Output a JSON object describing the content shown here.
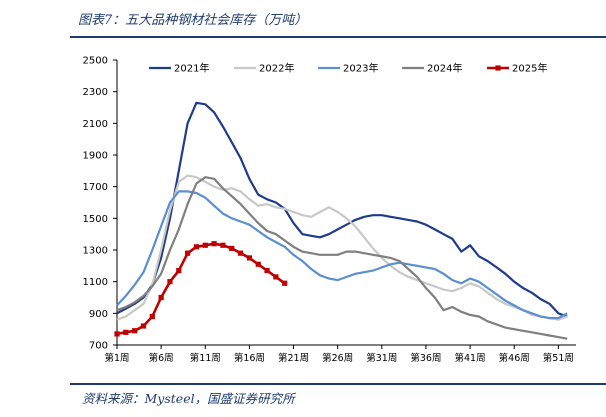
{
  "figure_title": "图表7：五大品种钢材社会库存（万吨）",
  "source_note": "资料来源：Mysteel，国盛证券研究所",
  "chart_data": {
    "type": "line",
    "title": "五大品种钢材社会库存（万吨）",
    "xlabel": "",
    "ylabel": "",
    "ylim": [
      700,
      2500
    ],
    "yticks": [
      700,
      900,
      1100,
      1300,
      1500,
      1700,
      1900,
      2100,
      2300,
      2500
    ],
    "xlim": [
      1,
      53
    ],
    "xtick_labels": [
      "第1周",
      "第6周",
      "第11周",
      "第16周",
      "第21周",
      "第26周",
      "第31周",
      "第36周",
      "第41周",
      "第46周",
      "第51周"
    ],
    "xtick_weeks": [
      1,
      6,
      11,
      16,
      21,
      26,
      31,
      36,
      41,
      46,
      51
    ],
    "legend_position": "top",
    "series": [
      {
        "name": "2021年",
        "color": "#1f3b8c",
        "width": 2.2,
        "points": [
          [
            1,
            900
          ],
          [
            2,
            930
          ],
          [
            3,
            960
          ],
          [
            4,
            1000
          ],
          [
            5,
            1080
          ],
          [
            6,
            1250
          ],
          [
            7,
            1500
          ],
          [
            8,
            1800
          ],
          [
            9,
            2100
          ],
          [
            10,
            2230
          ],
          [
            11,
            2220
          ],
          [
            12,
            2170
          ],
          [
            13,
            2080
          ],
          [
            14,
            1980
          ],
          [
            15,
            1880
          ],
          [
            16,
            1750
          ],
          [
            17,
            1650
          ],
          [
            18,
            1620
          ],
          [
            19,
            1600
          ],
          [
            20,
            1560
          ],
          [
            21,
            1470
          ],
          [
            22,
            1400
          ],
          [
            23,
            1390
          ],
          [
            24,
            1380
          ],
          [
            25,
            1400
          ],
          [
            26,
            1430
          ],
          [
            27,
            1460
          ],
          [
            28,
            1490
          ],
          [
            29,
            1510
          ],
          [
            30,
            1520
          ],
          [
            31,
            1520
          ],
          [
            32,
            1510
          ],
          [
            33,
            1500
          ],
          [
            34,
            1490
          ],
          [
            35,
            1480
          ],
          [
            36,
            1460
          ],
          [
            37,
            1430
          ],
          [
            38,
            1400
          ],
          [
            39,
            1370
          ],
          [
            40,
            1290
          ],
          [
            41,
            1330
          ],
          [
            42,
            1260
          ],
          [
            43,
            1230
          ],
          [
            44,
            1190
          ],
          [
            45,
            1150
          ],
          [
            46,
            1100
          ],
          [
            47,
            1060
          ],
          [
            48,
            1030
          ],
          [
            49,
            990
          ],
          [
            50,
            960
          ],
          [
            51,
            900
          ],
          [
            52,
            880
          ]
        ]
      },
      {
        "name": "2022年",
        "color": "#c8c8c8",
        "width": 2.2,
        "points": [
          [
            1,
            860
          ],
          [
            2,
            880
          ],
          [
            3,
            920
          ],
          [
            4,
            960
          ],
          [
            5,
            1080
          ],
          [
            6,
            1300
          ],
          [
            7,
            1550
          ],
          [
            8,
            1730
          ],
          [
            9,
            1770
          ],
          [
            10,
            1760
          ],
          [
            11,
            1730
          ],
          [
            12,
            1700
          ],
          [
            13,
            1680
          ],
          [
            14,
            1690
          ],
          [
            15,
            1670
          ],
          [
            16,
            1620
          ],
          [
            17,
            1580
          ],
          [
            18,
            1590
          ],
          [
            19,
            1570
          ],
          [
            20,
            1560
          ],
          [
            21,
            1540
          ],
          [
            22,
            1520
          ],
          [
            23,
            1510
          ],
          [
            24,
            1540
          ],
          [
            25,
            1570
          ],
          [
            26,
            1540
          ],
          [
            27,
            1500
          ],
          [
            28,
            1450
          ],
          [
            29,
            1380
          ],
          [
            30,
            1310
          ],
          [
            31,
            1250
          ],
          [
            32,
            1200
          ],
          [
            33,
            1160
          ],
          [
            34,
            1130
          ],
          [
            35,
            1110
          ],
          [
            36,
            1090
          ],
          [
            37,
            1070
          ],
          [
            38,
            1050
          ],
          [
            39,
            1040
          ],
          [
            40,
            1060
          ],
          [
            41,
            1090
          ],
          [
            42,
            1070
          ],
          [
            43,
            1030
          ],
          [
            44,
            990
          ],
          [
            45,
            960
          ],
          [
            46,
            940
          ],
          [
            47,
            920
          ],
          [
            48,
            890
          ],
          [
            49,
            880
          ],
          [
            50,
            870
          ],
          [
            51,
            860
          ],
          [
            52,
            880
          ]
        ]
      },
      {
        "name": "2023年",
        "color": "#5b8fd0",
        "width": 2.2,
        "points": [
          [
            1,
            950
          ],
          [
            2,
            1010
          ],
          [
            3,
            1080
          ],
          [
            4,
            1160
          ],
          [
            5,
            1300
          ],
          [
            6,
            1450
          ],
          [
            7,
            1600
          ],
          [
            8,
            1670
          ],
          [
            9,
            1670
          ],
          [
            10,
            1660
          ],
          [
            11,
            1630
          ],
          [
            12,
            1580
          ],
          [
            13,
            1530
          ],
          [
            14,
            1500
          ],
          [
            15,
            1480
          ],
          [
            16,
            1460
          ],
          [
            17,
            1420
          ],
          [
            18,
            1380
          ],
          [
            19,
            1350
          ],
          [
            20,
            1320
          ],
          [
            21,
            1270
          ],
          [
            22,
            1230
          ],
          [
            23,
            1180
          ],
          [
            24,
            1140
          ],
          [
            25,
            1120
          ],
          [
            26,
            1110
          ],
          [
            27,
            1130
          ],
          [
            28,
            1150
          ],
          [
            29,
            1160
          ],
          [
            30,
            1170
          ],
          [
            31,
            1190
          ],
          [
            32,
            1210
          ],
          [
            33,
            1220
          ],
          [
            34,
            1210
          ],
          [
            35,
            1200
          ],
          [
            36,
            1190
          ],
          [
            37,
            1180
          ],
          [
            38,
            1150
          ],
          [
            39,
            1110
          ],
          [
            40,
            1090
          ],
          [
            41,
            1120
          ],
          [
            42,
            1100
          ],
          [
            43,
            1060
          ],
          [
            44,
            1020
          ],
          [
            45,
            980
          ],
          [
            46,
            950
          ],
          [
            47,
            920
          ],
          [
            48,
            900
          ],
          [
            49,
            880
          ],
          [
            50,
            870
          ],
          [
            51,
            870
          ],
          [
            52,
            900
          ]
        ]
      },
      {
        "name": "2024年",
        "color": "#7f7f7f",
        "width": 2.2,
        "points": [
          [
            1,
            920
          ],
          [
            2,
            940
          ],
          [
            3,
            970
          ],
          [
            4,
            1010
          ],
          [
            5,
            1070
          ],
          [
            6,
            1150
          ],
          [
            7,
            1300
          ],
          [
            8,
            1430
          ],
          [
            9,
            1590
          ],
          [
            10,
            1720
          ],
          [
            11,
            1760
          ],
          [
            12,
            1750
          ],
          [
            13,
            1690
          ],
          [
            14,
            1640
          ],
          [
            15,
            1590
          ],
          [
            16,
            1530
          ],
          [
            17,
            1470
          ],
          [
            18,
            1420
          ],
          [
            19,
            1400
          ],
          [
            20,
            1360
          ],
          [
            21,
            1320
          ],
          [
            22,
            1290
          ],
          [
            23,
            1280
          ],
          [
            24,
            1270
          ],
          [
            25,
            1270
          ],
          [
            26,
            1270
          ],
          [
            27,
            1290
          ],
          [
            28,
            1290
          ],
          [
            29,
            1280
          ],
          [
            30,
            1270
          ],
          [
            31,
            1260
          ],
          [
            32,
            1250
          ],
          [
            33,
            1230
          ],
          [
            34,
            1180
          ],
          [
            35,
            1130
          ],
          [
            36,
            1060
          ],
          [
            37,
            1000
          ],
          [
            38,
            920
          ],
          [
            39,
            940
          ],
          [
            40,
            910
          ],
          [
            41,
            890
          ],
          [
            42,
            880
          ],
          [
            43,
            850
          ],
          [
            44,
            830
          ],
          [
            45,
            810
          ],
          [
            46,
            800
          ],
          [
            47,
            790
          ],
          [
            48,
            780
          ],
          [
            49,
            770
          ],
          [
            50,
            760
          ],
          [
            51,
            750
          ],
          [
            52,
            740
          ]
        ]
      },
      {
        "name": "2025年",
        "color": "#c00000",
        "width": 2.6,
        "marker": "square",
        "points": [
          [
            1,
            770
          ],
          [
            2,
            780
          ],
          [
            3,
            790
          ],
          [
            4,
            820
          ],
          [
            5,
            880
          ],
          [
            6,
            1000
          ],
          [
            7,
            1100
          ],
          [
            8,
            1170
          ],
          [
            9,
            1280
          ],
          [
            10,
            1320
          ],
          [
            11,
            1330
          ],
          [
            12,
            1340
          ],
          [
            13,
            1330
          ],
          [
            14,
            1310
          ],
          [
            15,
            1280
          ],
          [
            16,
            1250
          ],
          [
            17,
            1210
          ],
          [
            18,
            1170
          ],
          [
            19,
            1130
          ],
          [
            20,
            1090
          ]
        ]
      }
    ]
  }
}
